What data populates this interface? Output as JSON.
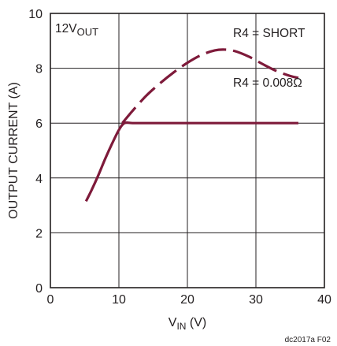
{
  "chart_data": {
    "type": "line",
    "title": "",
    "xlabel": {
      "main": "V",
      "sub": "IN",
      "suffix": " (V)"
    },
    "ylabel": "OUTPUT CURRENT (A)",
    "xlim": [
      0,
      40
    ],
    "ylim": [
      0,
      10
    ],
    "x_ticks": [
      0,
      10,
      20,
      30,
      40
    ],
    "y_ticks": [
      0,
      2,
      4,
      6,
      8,
      10
    ],
    "grid": true,
    "color": "#7e1a3a",
    "series": [
      {
        "name": "R4 = SHORT",
        "style": "dashed",
        "x": [
          10.5,
          12,
          14,
          16,
          18,
          20,
          22,
          24,
          25.5,
          27,
          29,
          31,
          33,
          35,
          36.2
        ],
        "y": [
          6.0,
          6.45,
          7.0,
          7.45,
          7.85,
          8.2,
          8.48,
          8.65,
          8.68,
          8.62,
          8.42,
          8.15,
          7.9,
          7.72,
          7.65
        ]
      },
      {
        "name": "R4 = 0.008Ω",
        "style": "solid",
        "x": [
          5.2,
          6,
          7,
          8,
          9,
          10,
          10.8,
          12,
          14,
          18,
          22,
          26,
          30,
          34,
          36.2
        ],
        "y": [
          3.15,
          3.55,
          4.1,
          4.7,
          5.25,
          5.75,
          6.0,
          6.0,
          6.0,
          6.0,
          6.0,
          6.0,
          6.0,
          6.0,
          6.0
        ]
      }
    ],
    "annotations": {
      "corner_main": "12V",
      "corner_sub": "OUT",
      "short_label": "R4 = SHORT",
      "resistor_label": "R4 = 0.008Ω"
    },
    "figure_id": "dc2017a F02"
  }
}
